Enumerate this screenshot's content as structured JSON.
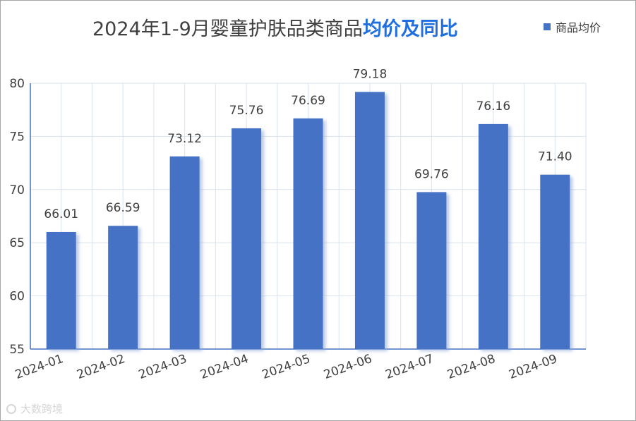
{
  "header": {
    "title_main": "2024年1-9月婴童护肤品类商品",
    "title_highlight": "均价及同比"
  },
  "legend": {
    "label": "商品均价"
  },
  "watermark": {
    "text": "大数跨境"
  },
  "colors": {
    "bar": "#4472c4",
    "grid": "#d9e2f0",
    "axis": "#4472c4",
    "title_highlight": "#1f6fe0"
  },
  "chart_data": {
    "type": "bar",
    "title": "2024年1-9月婴童护肤品类商品均价及同比",
    "categories": [
      "2024-01",
      "2024-02",
      "2024-03",
      "2024-04",
      "2024-05",
      "2024-06",
      "2024-07",
      "2024-08",
      "2024-09"
    ],
    "series": [
      {
        "name": "商品均价",
        "values": [
          66.01,
          66.59,
          73.12,
          75.76,
          76.69,
          79.18,
          69.76,
          76.16,
          71.4
        ],
        "labels": [
          "66.01",
          "66.59",
          "73.12",
          "75.76",
          "76.69",
          "79.18",
          "69.76",
          "76.16",
          "71.40"
        ]
      }
    ],
    "yticks": [
      55,
      60,
      65,
      70,
      75,
      80
    ],
    "ylim": [
      55,
      80
    ],
    "grid": true,
    "legend_position": "top-right"
  }
}
